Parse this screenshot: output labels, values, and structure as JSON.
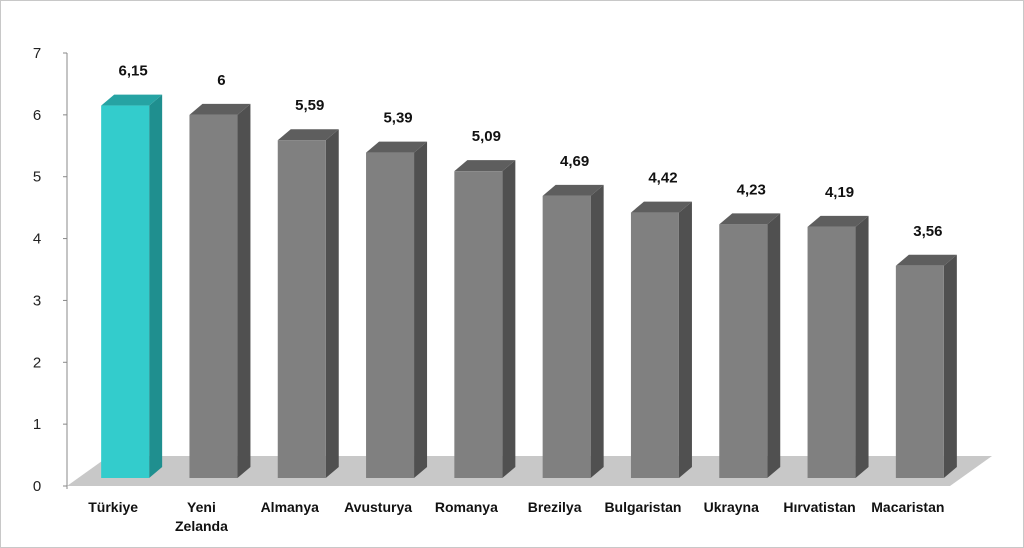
{
  "chart_data": {
    "type": "bar",
    "categories": [
      "Türkiye",
      "Yeni Zelanda",
      "Almanya",
      "Avusturya",
      "Romanya",
      "Brezilya",
      "Bulgaristan",
      "Ukrayna",
      "Hırvatistan",
      "Macaristan"
    ],
    "category_lines": [
      [
        "Türkiye"
      ],
      [
        "Yeni",
        "Zelanda"
      ],
      [
        "Almanya"
      ],
      [
        "Avusturya"
      ],
      [
        "Romanya"
      ],
      [
        "Brezilya"
      ],
      [
        "Bulgaristan"
      ],
      [
        "Ukrayna"
      ],
      [
        "Hırvatistan"
      ],
      [
        "Macaristan"
      ]
    ],
    "values": [
      6.15,
      6,
      5.59,
      5.39,
      5.09,
      4.69,
      4.42,
      4.23,
      4.19,
      3.56
    ],
    "value_labels": [
      "6,15",
      "6",
      "5,59",
      "5,39",
      "5,09",
      "4,69",
      "4,42",
      "4,23",
      "4,19",
      "3,56"
    ],
    "y_ticks": [
      "0",
      "1",
      "2",
      "3",
      "4",
      "5",
      "6",
      "7"
    ],
    "ylim": [
      0,
      7
    ],
    "title": "",
    "xlabel": "",
    "ylabel": "",
    "legend": "none",
    "grid": false,
    "highlight_index": 0,
    "colors": {
      "highlight_front": "#33cccc",
      "highlight_side": "#1f8f8f",
      "highlight_top": "#26a3a3",
      "bar_front": "#808080",
      "bar_side": "#505050",
      "bar_top": "#5e5e5e",
      "floor": "#c8c8c8"
    }
  }
}
